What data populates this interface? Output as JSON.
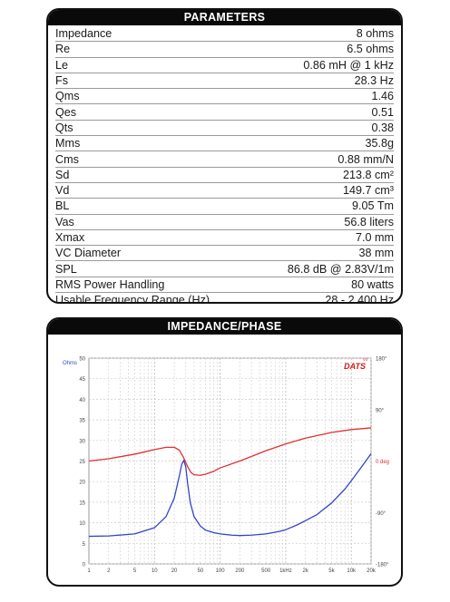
{
  "parameters": {
    "title": "PARAMETERS",
    "rows": [
      {
        "label": "Impedance",
        "value": "8 ohms"
      },
      {
        "label": "Re",
        "value": "6.5 ohms"
      },
      {
        "label": "Le",
        "value": "0.86 mH @ 1 kHz"
      },
      {
        "label": "Fs",
        "value": "28.3 Hz"
      },
      {
        "label": "Qms",
        "value": "1.46"
      },
      {
        "label": "Qes",
        "value": "0.51"
      },
      {
        "label": "Qts",
        "value": "0.38"
      },
      {
        "label": "Mms",
        "value": "35.8g"
      },
      {
        "label": "Cms",
        "value": "0.88 mm/N"
      },
      {
        "label": "Sd",
        "value": "213.8 cm²"
      },
      {
        "label": "Vd",
        "value": "149.7 cm³"
      },
      {
        "label": "BL",
        "value": "9.05 Tm"
      },
      {
        "label": "Vas",
        "value": "56.8 liters"
      },
      {
        "label": "Xmax",
        "value": "7.0 mm"
      },
      {
        "label": "VC Diameter",
        "value": "38 mm"
      },
      {
        "label": "SPL",
        "value": "86.8 dB @ 2.83V/1m"
      },
      {
        "label": "RMS Power Handling",
        "value": "80 watts"
      },
      {
        "label": "Usable Frequency Range (Hz)",
        "value": "28 - 2,400 Hz"
      }
    ]
  },
  "chart_panel": {
    "title": "IMPEDANCE/PHASE",
    "logo": "DATS",
    "logo_sup": "V3"
  },
  "chart_data": {
    "type": "line",
    "x_scale": "log",
    "xlim": [
      1,
      20000
    ],
    "x_ticks": [
      1,
      2,
      5,
      10,
      20,
      50,
      100,
      200,
      500,
      1000,
      2000,
      5000,
      10000,
      20000
    ],
    "x_tick_labels": [
      "1",
      "2",
      "5",
      "10",
      "20",
      "50",
      "100",
      "200",
      "500",
      "1kHz",
      "2k",
      "5k",
      "10k",
      "20k"
    ],
    "ylabel": "Ohms",
    "ylim": [
      0,
      50
    ],
    "y_ticks": [
      0,
      5,
      10,
      15,
      20,
      25,
      30,
      35,
      40,
      45,
      50
    ],
    "y2label": "0 deg",
    "y2lim": [
      -180,
      180
    ],
    "y2_ticks": [
      {
        "value": 180,
        "label": "180°"
      },
      {
        "value": 90,
        "label": "90°"
      },
      {
        "value": 0,
        "label": "0 deg"
      },
      {
        "value": -90,
        "label": "-90°"
      },
      {
        "value": -180,
        "label": "-180°"
      }
    ],
    "grid": true,
    "series": [
      {
        "axis": "left",
        "color": "#3344cc",
        "x": [
          1,
          2,
          5,
          10,
          15,
          20,
          24,
          26,
          28,
          30,
          32,
          35,
          40,
          50,
          60,
          80,
          100,
          150,
          200,
          300,
          500,
          800,
          1000,
          1500,
          2000,
          3000,
          5000,
          8000,
          10000,
          15000,
          20000
        ],
        "values": [
          6.7,
          6.8,
          7.3,
          8.8,
          11.5,
          16.0,
          21.5,
          24.2,
          25.2,
          23.5,
          19.5,
          15.0,
          11.5,
          9.2,
          8.2,
          7.6,
          7.3,
          7.0,
          6.9,
          7.0,
          7.3,
          7.9,
          8.3,
          9.5,
          10.5,
          12.0,
          14.8,
          18.2,
          20.2,
          24.0,
          26.8
        ]
      },
      {
        "axis": "right",
        "color": "#e03030",
        "x": [
          1,
          2,
          5,
          10,
          15,
          20,
          24,
          28,
          32,
          36,
          40,
          50,
          60,
          80,
          100,
          200,
          500,
          1000,
          2000,
          5000,
          10000,
          20000
        ],
        "values": [
          0,
          4,
          12,
          20,
          24,
          24,
          19,
          5,
          -10,
          -20,
          -24,
          -25,
          -23,
          -18,
          -12,
          0,
          18,
          30,
          40,
          50,
          55,
          58
        ]
      }
    ]
  }
}
